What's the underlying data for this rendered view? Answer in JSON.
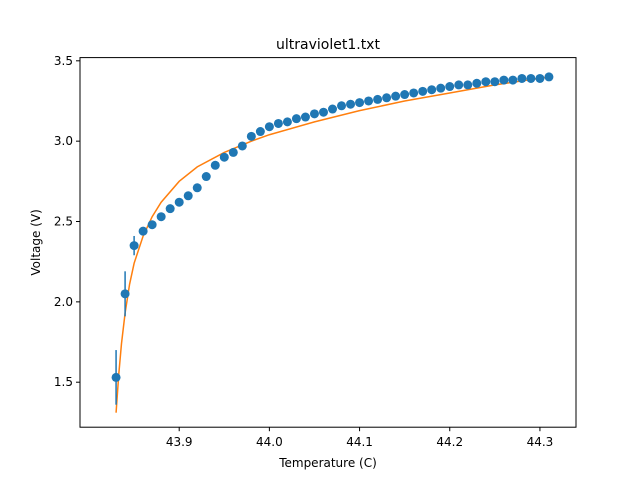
{
  "chart_data": {
    "type": "scatter",
    "title": "ultraviolet1.txt",
    "xlabel": "Temperature (C)",
    "ylabel": "Voltage (V)",
    "xlim": [
      43.79,
      44.34
    ],
    "ylim": [
      1.22,
      3.52
    ],
    "xticks": [
      43.9,
      44.0,
      44.1,
      44.2,
      44.3
    ],
    "yticks": [
      1.5,
      2.0,
      2.5,
      3.0,
      3.5
    ],
    "xtick_labels": [
      "43.9",
      "44.0",
      "44.1",
      "44.2",
      "44.3"
    ],
    "ytick_labels": [
      "1.5",
      "2.0",
      "2.5",
      "3.0",
      "3.5"
    ],
    "grid": false,
    "colors": {
      "points": "#1f77b4",
      "fit": "#ff7f0e"
    },
    "series": [
      {
        "kind": "errorbar-points",
        "x": [
          43.83,
          43.84,
          43.85,
          43.86,
          43.87,
          43.88,
          43.89,
          43.9,
          43.91,
          43.92,
          43.93,
          43.94,
          43.95,
          43.96,
          43.97,
          43.98,
          43.99,
          44.0,
          44.01,
          44.02,
          44.03,
          44.04,
          44.05,
          44.06,
          44.07,
          44.08,
          44.09,
          44.1,
          44.11,
          44.12,
          44.13,
          44.14,
          44.15,
          44.16,
          44.17,
          44.18,
          44.19,
          44.2,
          44.21,
          44.22,
          44.23,
          44.24,
          44.25,
          44.26,
          44.27,
          44.28,
          44.29,
          44.3,
          44.31
        ],
        "y": [
          1.53,
          2.05,
          2.35,
          2.44,
          2.48,
          2.53,
          2.58,
          2.62,
          2.66,
          2.71,
          2.78,
          2.85,
          2.9,
          2.93,
          2.97,
          3.03,
          3.06,
          3.09,
          3.11,
          3.12,
          3.14,
          3.15,
          3.17,
          3.18,
          3.2,
          3.22,
          3.23,
          3.24,
          3.25,
          3.26,
          3.27,
          3.28,
          3.29,
          3.3,
          3.31,
          3.32,
          3.33,
          3.34,
          3.35,
          3.35,
          3.36,
          3.37,
          3.37,
          3.38,
          3.38,
          3.39,
          3.39,
          3.39,
          3.4
        ],
        "yerr": [
          0.17,
          0.14,
          0.06,
          0.02,
          0.02,
          0.02,
          0.02,
          0.02,
          0.02,
          0.02,
          0.02,
          0.02,
          0.02,
          0.02,
          0.02,
          0.02,
          0.02,
          0.02,
          0.01,
          0.01,
          0.01,
          0.01,
          0.01,
          0.01,
          0.01,
          0.01,
          0.01,
          0.01,
          0.01,
          0.01,
          0.01,
          0.01,
          0.01,
          0.01,
          0.01,
          0.01,
          0.01,
          0.01,
          0.01,
          0.01,
          0.01,
          0.01,
          0.01,
          0.01,
          0.01,
          0.01,
          0.01,
          0.01,
          0.01
        ]
      },
      {
        "kind": "fit-line",
        "x": [
          43.83,
          43.833,
          43.836,
          43.84,
          43.845,
          43.85,
          43.86,
          43.87,
          43.88,
          43.9,
          43.92,
          43.95,
          43.98,
          44.0,
          44.05,
          44.1,
          44.15,
          44.2,
          44.25,
          44.31
        ],
        "y": [
          1.31,
          1.55,
          1.74,
          1.93,
          2.11,
          2.24,
          2.41,
          2.53,
          2.62,
          2.75,
          2.84,
          2.93,
          3.0,
          3.04,
          3.12,
          3.19,
          3.25,
          3.3,
          3.35,
          3.4
        ]
      }
    ]
  }
}
